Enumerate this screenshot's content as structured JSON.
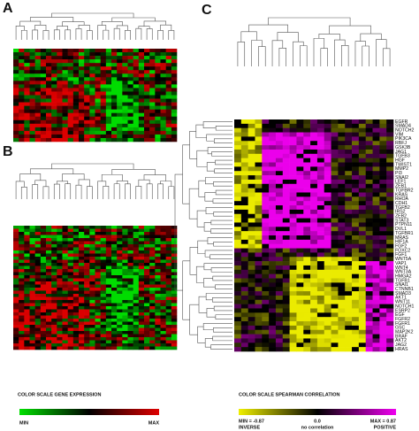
{
  "panel_a": {
    "letter": "A"
  },
  "panel_b": {
    "letter": "B"
  },
  "panel_c": {
    "letter": "C",
    "row_labels": [
      "EGFR",
      "SMAD4",
      "NOTCH2",
      "VIM",
      "PIK3CA",
      "RBFJ",
      "GSK3B",
      "JAG1",
      "TGFB3",
      "HGF",
      "TWIST1",
      "MMP2",
      "PI3",
      "SNAI2",
      "LEF1",
      "ZEB1",
      "TGFBR2",
      "KRAS",
      "RHOA",
      "CDH1",
      "TGFB2",
      "IRS2",
      "ZEB2",
      "STAT3",
      "PTPN11",
      "DVL1",
      "TGFBR1",
      "MRAS",
      "HIF1A",
      "FGF2",
      "FOXC2",
      "FGF1",
      "WNT5A",
      "VAP1",
      "WNT4",
      "WNT3A",
      "HMGA2",
      "TGFB1",
      "SNAI1",
      "CTNNB1",
      "SMAD3",
      "AKT1",
      "WNT11",
      "NOTCH1",
      "ESRP2",
      "EGF",
      "FGFR2",
      "FGFR1",
      "GSC",
      "MAP2K2",
      "BRAF",
      "AKT2",
      "JAG2",
      "HRAS"
    ]
  },
  "legend_left": {
    "title": "COLOR SCALE  GENE EXPRESSION",
    "min": "MIN",
    "max": "MAX"
  },
  "legend_right": {
    "title": "COLOR SCALE  SPEARMAN CORRELATION",
    "min": "MIN = -0.87",
    "min_note": "INVERSE",
    "mid": "0.0",
    "mid_note": "no correlation",
    "max": "MAX = 0.87",
    "max_note": "POSITIVE"
  }
}
